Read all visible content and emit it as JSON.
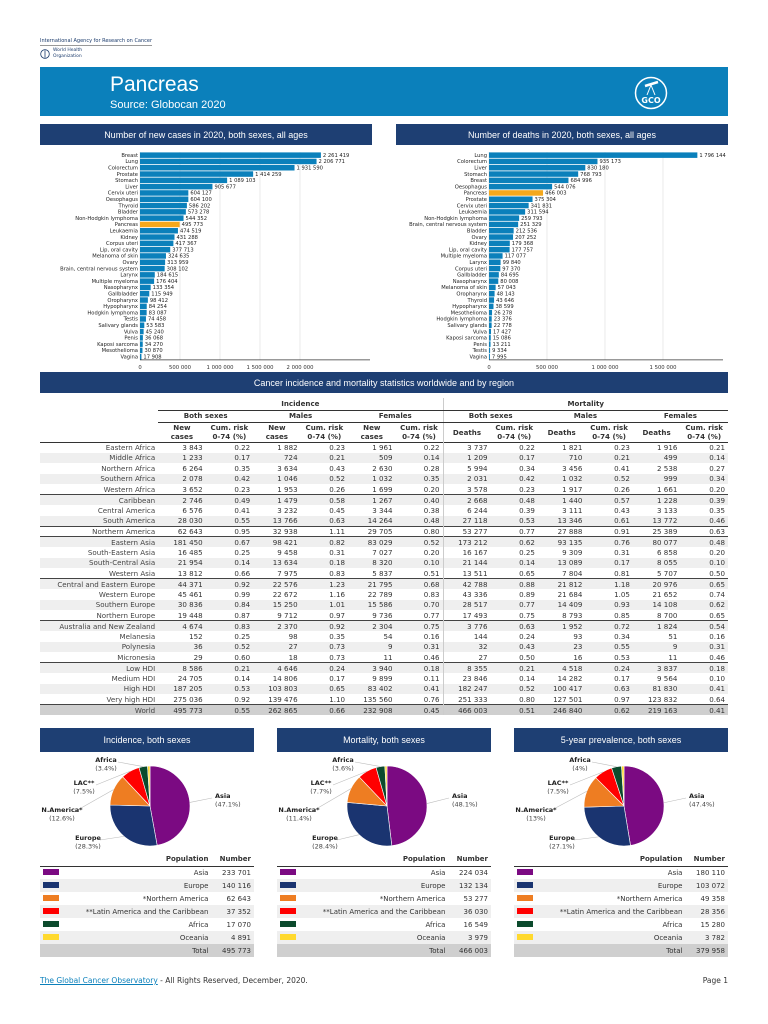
{
  "header": {
    "org_line": "International Agency for Research on Cancer",
    "who_line1": "World Health",
    "who_line2": "Organization",
    "title": "Pancreas",
    "source": "Source: Globocan 2020",
    "logo_text": "GCO"
  },
  "colors": {
    "bar": "#0b80bb",
    "highlight": "#f5a81c",
    "header_dark": "#1e3f73",
    "banner": "#0b80bb",
    "Asia": "#7b0a82",
    "Europe": "#1a3470",
    "Northern America": "#ee7d22",
    "LAC": "#ff0000",
    "Africa": "#0b4a2c",
    "Oceania": "#ffd92e"
  },
  "chart_data": [
    {
      "type": "bar",
      "orientation": "horizontal",
      "title": "Number of new cases in 2020, both sexes, all ages",
      "highlight": "Pancreas",
      "xlim": [
        0,
        2500000
      ],
      "xticks": [
        "0",
        "500 000",
        "1 000 000",
        "1 500 000",
        "2 000 000"
      ],
      "xtick_values": [
        0,
        500000,
        1000000,
        1500000,
        2000000
      ],
      "grid": true,
      "categories": [
        "Breast",
        "Lung",
        "Colorectum",
        "Prostate",
        "Stomach",
        "Liver",
        "Cervix uteri",
        "Oesophagus",
        "Thyroid",
        "Bladder",
        "Non-Hodgkin lymphoma",
        "Pancreas",
        "Leukaemia",
        "Kidney",
        "Corpus uteri",
        "Lip, oral cavity",
        "Melanoma of skin",
        "Ovary",
        "Brain, central nervous system",
        "Larynx",
        "Multiple myeloma",
        "Nasopharynx",
        "Gallbladder",
        "Oropharynx",
        "Hypopharynx",
        "Hodgkin lymphoma",
        "Testis",
        "Salivary glands",
        "Vulva",
        "Penis",
        "Kaposi sarcoma",
        "Mesothelioma",
        "Vagina"
      ],
      "values": [
        2261419,
        2206771,
        1931590,
        1414259,
        1089103,
        905677,
        604127,
        604100,
        586202,
        573278,
        544352,
        495773,
        474519,
        431288,
        417367,
        377713,
        324635,
        313959,
        308102,
        184615,
        176404,
        133354,
        115949,
        98412,
        84254,
        83087,
        74458,
        53583,
        45240,
        36068,
        34270,
        30870,
        17908
      ],
      "labels": [
        "2 261 419",
        "2 206 771",
        "1 931 590",
        "1 414 259",
        "1 089 103",
        "905 677",
        "604 127",
        "604 100",
        "586 202",
        "573 278",
        "544 352",
        "495 773",
        "474 519",
        "431 288",
        "417 367",
        "377 713",
        "324 635",
        "313 959",
        "308 102",
        "184 615",
        "176 404",
        "133 354",
        "115 949",
        "98 412",
        "84 254",
        "83 087",
        "74 458",
        "53 583",
        "45 240",
        "36 068",
        "34 270",
        "30 870",
        "17 908"
      ]
    },
    {
      "type": "bar",
      "orientation": "horizontal",
      "title": "Number of deaths in 2020, both sexes, all ages",
      "highlight": "Pancreas",
      "xlim": [
        0,
        1850000
      ],
      "xticks": [
        "0",
        "500 000",
        "1 000 000",
        "1 500 000"
      ],
      "xtick_values": [
        0,
        500000,
        1000000,
        1500000
      ],
      "grid": true,
      "categories": [
        "Lung",
        "Colorectum",
        "Liver",
        "Stomach",
        "Breast",
        "Oesophagus",
        "Pancreas",
        "Prostate",
        "Cervix uteri",
        "Leukaemia",
        "Non-Hodgkin lymphoma",
        "Brain, central nervous system",
        "Bladder",
        "Ovary",
        "Kidney",
        "Lip, oral cavity",
        "Multiple myeloma",
        "Larynx",
        "Corpus uteri",
        "Gallbladder",
        "Nasopharynx",
        "Melanoma of skin",
        "Oropharynx",
        "Thyroid",
        "Hypopharynx",
        "Mesothelioma",
        "Hodgkin lymphoma",
        "Salivary glands",
        "Vulva",
        "Kaposi sarcoma",
        "Penis",
        "Testis",
        "Vagina"
      ],
      "values": [
        1796144,
        935173,
        830180,
        768793,
        684996,
        544076,
        466003,
        375304,
        341831,
        311594,
        259793,
        251329,
        212536,
        207252,
        179368,
        177757,
        117077,
        99840,
        97370,
        84695,
        80008,
        57043,
        48143,
        43646,
        38599,
        26278,
        23376,
        22778,
        17427,
        15086,
        13211,
        9334,
        7995
      ],
      "labels": [
        "1 796 144",
        "935 173",
        "830 180",
        "768 793",
        "684 996",
        "544 076",
        "466 003",
        "375 304",
        "341 831",
        "311 594",
        "259 793",
        "251 329",
        "212 536",
        "207 252",
        "179 368",
        "177 757",
        "117 077",
        "99 840",
        "97 370",
        "84 695",
        "80 008",
        "57 043",
        "48 143",
        "43 646",
        "38 599",
        "26 278",
        "23 376",
        "22 778",
        "17 427",
        "15 086",
        "13 211",
        "9 334",
        "7 995"
      ]
    },
    {
      "type": "pie",
      "title": "Incidence, both sexes",
      "categories": [
        "Asia",
        "Europe",
        "*Northern America",
        "**Latin America and the Caribbean",
        "Africa",
        "Oceania"
      ],
      "values": [
        233701,
        140116,
        62643,
        37352,
        17070,
        4891
      ],
      "labels": [
        "233 701",
        "140 116",
        "62 643",
        "37 352",
        "17 070",
        "4 891"
      ],
      "total": "495 773",
      "callouts": [
        {
          "name": "Asia",
          "pct": "(47.1%)"
        },
        {
          "name": "Europe",
          "pct": "(28.3%)"
        },
        {
          "name": "N.America*",
          "pct": "(12.6%)"
        },
        {
          "name": "LAC**",
          "pct": "(7.5%)"
        },
        {
          "name": "Africa",
          "pct": "(3.4%)"
        }
      ]
    },
    {
      "type": "pie",
      "title": "Mortality, both sexes",
      "categories": [
        "Asia",
        "Europe",
        "*Northern America",
        "**Latin America and the Caribbean",
        "Africa",
        "Oceania"
      ],
      "values": [
        224034,
        132134,
        53277,
        36030,
        16549,
        3979
      ],
      "labels": [
        "224 034",
        "132 134",
        "53 277",
        "36 030",
        "16 549",
        "3 979"
      ],
      "total": "466 003",
      "callouts": [
        {
          "name": "Asia",
          "pct": "(48.1%)"
        },
        {
          "name": "Europe",
          "pct": "(28.4%)"
        },
        {
          "name": "N.America*",
          "pct": "(11.4%)"
        },
        {
          "name": "LAC**",
          "pct": "(7.7%)"
        },
        {
          "name": "Africa",
          "pct": "(3.6%)"
        }
      ]
    },
    {
      "type": "pie",
      "title": "5-year prevalence, both sexes",
      "categories": [
        "Asia",
        "Europe",
        "*Northern America",
        "**Latin America and the Caribbean",
        "Africa",
        "Oceania"
      ],
      "values": [
        180110,
        103072,
        49358,
        28356,
        15280,
        3782
      ],
      "labels": [
        "180 110",
        "103 072",
        "49 358",
        "28 356",
        "15 280",
        "3 782"
      ],
      "total": "379 958",
      "callouts": [
        {
          "name": "Asia",
          "pct": "(47.4%)"
        },
        {
          "name": "Europe",
          "pct": "(27.1%)"
        },
        {
          "name": "N.America*",
          "pct": "(13%)"
        },
        {
          "name": "LAC**",
          "pct": "(7.5%)"
        },
        {
          "name": "Africa",
          "pct": "(4%)"
        }
      ]
    }
  ],
  "stats": {
    "title": "Cancer incidence and mortality statistics worldwide and by region",
    "group_incidence": "Incidence",
    "group_mortality": "Mortality",
    "sexes": [
      "Both sexes",
      "Males",
      "Females",
      "Both sexes",
      "Males",
      "Females"
    ],
    "cols": [
      "New cases",
      "Cum. risk 0-74 (%)",
      "New cases",
      "Cum. risk 0-74 (%)",
      "New cases",
      "Cum. risk 0-74 (%)",
      "Deaths",
      "Cum. risk 0-74 (%)",
      "Deaths",
      "Cum. risk 0-74 (%)",
      "Deaths",
      "Cum. risk 0-74 (%)"
    ],
    "rows": [
      [
        "Eastern Africa",
        "3 843",
        "0.22",
        "1 882",
        "0.23",
        "1 961",
        "0.22",
        "3 737",
        "0.22",
        "1 821",
        "0.23",
        "1 916",
        "0.21"
      ],
      [
        "Middle Africa",
        "1 233",
        "0.17",
        "724",
        "0.21",
        "509",
        "0.14",
        "1 209",
        "0.17",
        "710",
        "0.21",
        "499",
        "0.14"
      ],
      [
        "Northern Africa",
        "6 264",
        "0.35",
        "3 634",
        "0.43",
        "2 630",
        "0.28",
        "5 994",
        "0.34",
        "3 456",
        "0.41",
        "2 538",
        "0.27"
      ],
      [
        "Southern Africa",
        "2 078",
        "0.42",
        "1 046",
        "0.52",
        "1 032",
        "0.35",
        "2 031",
        "0.42",
        "1 032",
        "0.52",
        "999",
        "0.34"
      ],
      [
        "Western Africa",
        "3 652",
        "0.23",
        "1 953",
        "0.26",
        "1 699",
        "0.20",
        "3 578",
        "0.23",
        "1 917",
        "0.26",
        "1 661",
        "0.20"
      ],
      [
        "Caribbean",
        "2 746",
        "0.49",
        "1 479",
        "0.58",
        "1 267",
        "0.40",
        "2 668",
        "0.48",
        "1 440",
        "0.57",
        "1 228",
        "0.39"
      ],
      [
        "Central America",
        "6 576",
        "0.41",
        "3 232",
        "0.45",
        "3 344",
        "0.38",
        "6 244",
        "0.39",
        "3 111",
        "0.43",
        "3 133",
        "0.35"
      ],
      [
        "South America",
        "28 030",
        "0.55",
        "13 766",
        "0.63",
        "14 264",
        "0.48",
        "27 118",
        "0.53",
        "13 346",
        "0.61",
        "13 772",
        "0.46"
      ],
      [
        "Northern America",
        "62 643",
        "0.95",
        "32 938",
        "1.11",
        "29 705",
        "0.80",
        "53 277",
        "0.77",
        "27 888",
        "0.91",
        "25 389",
        "0.63"
      ],
      [
        "Eastern Asia",
        "181 450",
        "0.67",
        "98 421",
        "0.82",
        "83 029",
        "0.52",
        "173 212",
        "0.62",
        "93 135",
        "0.76",
        "80 077",
        "0.48"
      ],
      [
        "South-Eastern Asia",
        "16 485",
        "0.25",
        "9 458",
        "0.31",
        "7 027",
        "0.20",
        "16 167",
        "0.25",
        "9 309",
        "0.31",
        "6 858",
        "0.20"
      ],
      [
        "South-Central Asia",
        "21 954",
        "0.14",
        "13 634",
        "0.18",
        "8 320",
        "0.10",
        "21 144",
        "0.14",
        "13 089",
        "0.17",
        "8 055",
        "0.10"
      ],
      [
        "Western Asia",
        "13 812",
        "0.66",
        "7 975",
        "0.83",
        "5 837",
        "0.51",
        "13 511",
        "0.65",
        "7 804",
        "0.81",
        "5 707",
        "0.50"
      ],
      [
        "Central and Eastern Europe",
        "44 371",
        "0.92",
        "22 576",
        "1.23",
        "21 795",
        "0.68",
        "42 788",
        "0.88",
        "21 812",
        "1.18",
        "20 976",
        "0.65"
      ],
      [
        "Western Europe",
        "45 461",
        "0.99",
        "22 672",
        "1.16",
        "22 789",
        "0.83",
        "43 336",
        "0.89",
        "21 684",
        "1.05",
        "21 652",
        "0.74"
      ],
      [
        "Southern Europe",
        "30 836",
        "0.84",
        "15 250",
        "1.01",
        "15 586",
        "0.70",
        "28 517",
        "0.77",
        "14 409",
        "0.93",
        "14 108",
        "0.62"
      ],
      [
        "Northern Europe",
        "19 448",
        "0.87",
        "9 712",
        "0.97",
        "9 736",
        "0.77",
        "17 493",
        "0.75",
        "8 793",
        "0.85",
        "8 700",
        "0.65"
      ],
      [
        "Australia and New Zealand",
        "4 674",
        "0.83",
        "2 370",
        "0.92",
        "2 304",
        "0.75",
        "3 776",
        "0.63",
        "1 952",
        "0.72",
        "1 824",
        "0.54"
      ],
      [
        "Melanesia",
        "152",
        "0.25",
        "98",
        "0.35",
        "54",
        "0.16",
        "144",
        "0.24",
        "93",
        "0.34",
        "51",
        "0.16"
      ],
      [
        "Polynesia",
        "36",
        "0.52",
        "27",
        "0.73",
        "9",
        "0.31",
        "32",
        "0.43",
        "23",
        "0.55",
        "9",
        "0.31"
      ],
      [
        "Micronesia",
        "29",
        "0.60",
        "18",
        "0.73",
        "11",
        "0.46",
        "27",
        "0.50",
        "16",
        "0.53",
        "11",
        "0.46"
      ],
      [
        "Low HDI",
        "8 586",
        "0.21",
        "4 646",
        "0.24",
        "3 940",
        "0.18",
        "8 355",
        "0.21",
        "4 518",
        "0.24",
        "3 837",
        "0.18"
      ],
      [
        "Medium HDI",
        "24 705",
        "0.14",
        "14 806",
        "0.17",
        "9 899",
        "0.11",
        "23 846",
        "0.14",
        "14 282",
        "0.17",
        "9 564",
        "0.10"
      ],
      [
        "High HDI",
        "187 205",
        "0.53",
        "103 803",
        "0.65",
        "83 402",
        "0.41",
        "182 247",
        "0.52",
        "100 417",
        "0.63",
        "81 830",
        "0.41"
      ],
      [
        "Very high HDI",
        "275 036",
        "0.92",
        "139 476",
        "1.10",
        "135 560",
        "0.76",
        "251 333",
        "0.80",
        "127 501",
        "0.97",
        "123 832",
        "0.64"
      ],
      [
        "World",
        "495 773",
        "0.55",
        "262 865",
        "0.66",
        "232 908",
        "0.45",
        "466 003",
        "0.51",
        "246 840",
        "0.62",
        "219 163",
        "0.41"
      ]
    ]
  },
  "legend": {
    "col_population": "Population",
    "col_number": "Number",
    "total_label": "Total"
  },
  "footer": {
    "link": "The Global Cancer Observatory",
    "rights": " - All Rights Reserved, December, 2020.",
    "page": "Page 1"
  }
}
